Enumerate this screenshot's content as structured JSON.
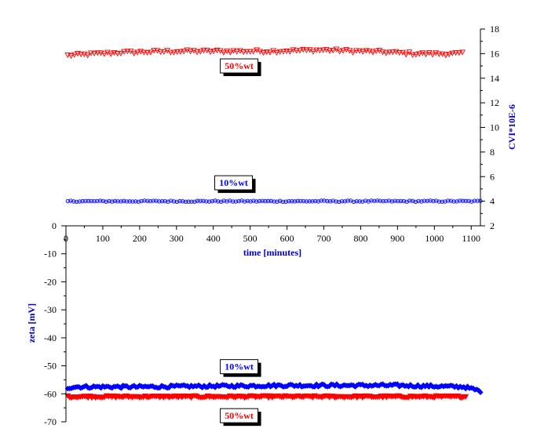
{
  "chart_data": [
    {
      "type": "scatter",
      "panel": "top",
      "title": "",
      "xlabel": "time [minutes]",
      "ylabel_right": "CVI*10E-6",
      "xlim": [
        0,
        1125
      ],
      "ylim": [
        2,
        18
      ],
      "xticks": [
        0,
        100,
        200,
        300,
        400,
        500,
        600,
        700,
        800,
        900,
        1000,
        1100
      ],
      "yticks": [
        2,
        4,
        6,
        8,
        10,
        12,
        14,
        16,
        18
      ],
      "left_axis_tick": 0,
      "grid": false,
      "series": [
        {
          "name": "50%wt",
          "color": "#ff0000",
          "marker": "triangle-down-open",
          "x_start": 5,
          "x_end": 1080,
          "x_step": 9,
          "level": [
            [
              0,
              15.85
            ],
            [
              60,
              15.95
            ],
            [
              150,
              16.1
            ],
            [
              300,
              16.2
            ],
            [
              550,
              16.2
            ],
            [
              700,
              16.3
            ],
            [
              850,
              16.15
            ],
            [
              950,
              16.0
            ],
            [
              1080,
              16.0
            ]
          ],
          "jitter": 0.12
        },
        {
          "name": "10%wt",
          "color": "#0000ff",
          "marker": "circle-open",
          "x_start": 5,
          "x_end": 1125,
          "x_step": 8,
          "level": [
            [
              0,
              4.0
            ],
            [
              1125,
              4.0
            ]
          ],
          "jitter": 0.05
        }
      ],
      "labels": [
        {
          "text": "50%wt",
          "color": "#ff0000",
          "x": 470,
          "y": 15.0
        },
        {
          "text": "10%wt",
          "color": "#0000ff",
          "x": 455,
          "y": 5.5
        }
      ]
    },
    {
      "type": "scatter",
      "panel": "bottom",
      "title": "",
      "xlabel": "",
      "ylabel": "zeta [mV]",
      "xlim": [
        0,
        1125
      ],
      "ylim": [
        -70,
        0
      ],
      "yticks": [
        -70,
        -60,
        -50,
        -40,
        -30,
        -20,
        -10
      ],
      "grid": false,
      "series": [
        {
          "name": "10%wt",
          "color": "#0000ff",
          "marker": "diamond-filled",
          "x_start": 5,
          "x_end": 1125,
          "x_step": 5,
          "level": [
            [
              0,
              -58.0
            ],
            [
              20,
              -57.5
            ],
            [
              200,
              -57.5
            ],
            [
              600,
              -57.0
            ],
            [
              900,
              -57.0
            ],
            [
              1080,
              -57.5
            ],
            [
              1125,
              -59.0
            ]
          ],
          "jitter": 0.5
        },
        {
          "name": "50%wt",
          "color": "#ff0000",
          "marker": "triangle-down-filled",
          "x_start": 5,
          "x_end": 1085,
          "x_step": 5,
          "level": [
            [
              0,
              -61.0
            ],
            [
              500,
              -61.0
            ],
            [
              1085,
              -61.0
            ]
          ],
          "jitter": 0.35
        }
      ],
      "labels": [
        {
          "text": "10%wt",
          "color": "#0000ff",
          "x": 470,
          "y": -50.3
        },
        {
          "text": "50%wt",
          "color": "#ff0000",
          "x": 470,
          "y": -67.8
        }
      ]
    }
  ]
}
